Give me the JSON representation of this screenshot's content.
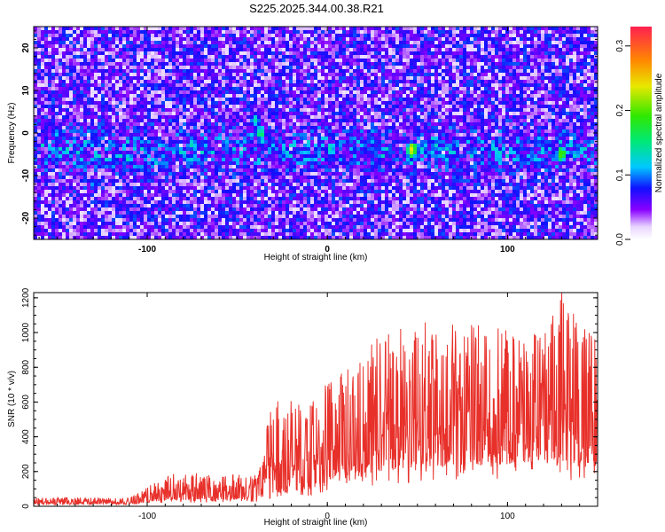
{
  "title": "S225.2025.344.00.38.R21",
  "chart_data": [
    {
      "type": "heatmap",
      "xlabel": "Height of straight line (km)",
      "ylabel": "Frequency (Hz)",
      "xlim": [
        -163,
        150
      ],
      "ylim": [
        -25,
        25
      ],
      "x_ticks": [
        {
          "v": -100,
          "label": "-100"
        },
        {
          "v": 0,
          "label": "0"
        },
        {
          "v": 100,
          "label": "100"
        }
      ],
      "y_ticks": [
        {
          "v": -20,
          "label": "-20"
        },
        {
          "v": -10,
          "label": "-10"
        },
        {
          "v": 0,
          "label": "0"
        },
        {
          "v": 10,
          "label": "10"
        },
        {
          "v": 20,
          "label": "20"
        }
      ],
      "colorbar": {
        "label": "Normalized spectral amplitude",
        "range": [
          0.0,
          0.33
        ],
        "ticks": [
          {
            "v": 0.0,
            "label": "0.0"
          },
          {
            "v": 0.1,
            "label": "0.1"
          },
          {
            "v": 0.2,
            "label": "0.2"
          },
          {
            "v": 0.3,
            "label": "0.3"
          }
        ]
      },
      "hot_spots": [
        {
          "x": 47,
          "y": -4,
          "value": 0.28
        },
        {
          "x": 130,
          "y": -5,
          "value": 0.24
        },
        {
          "x": -37,
          "y": 0,
          "value": 0.18
        },
        {
          "x": -40,
          "y": 3,
          "value": 0.15
        },
        {
          "x": 2,
          "y": -4,
          "value": 0.15
        },
        {
          "x": -110,
          "y": -6,
          "value": 0.14
        },
        {
          "x": -150,
          "y": 0,
          "value": 0.13
        },
        {
          "x": -75,
          "y": -2,
          "value": 0.12
        },
        {
          "x": 95,
          "y": -5,
          "value": 0.13
        },
        {
          "x": 60,
          "y": -3,
          "value": 0.12
        },
        {
          "x": -130,
          "y": -12,
          "value": 0.11
        },
        {
          "x": 25,
          "y": -4,
          "value": 0.11
        },
        {
          "x": -25,
          "y": -5,
          "value": 0.11
        },
        {
          "x": 115,
          "y": -6,
          "value": 0.12
        },
        {
          "x": -90,
          "y": -8,
          "value": 0.1
        },
        {
          "x": 80,
          "y": -4,
          "value": 0.1
        }
      ],
      "baseline_amplitude": 0.05
    },
    {
      "type": "line",
      "xlabel": "Height of straight line (km)",
      "ylabel": "SNR (10 * v/v)",
      "xlim": [
        -163,
        150
      ],
      "ylim": [
        0,
        1230
      ],
      "x_ticks": [
        {
          "v": -100,
          "label": "-100"
        },
        {
          "v": 0,
          "label": "0"
        },
        {
          "v": 100,
          "label": "100"
        }
      ],
      "y_ticks": [
        {
          "v": 0,
          "label": "0"
        },
        {
          "v": 200,
          "label": "200"
        },
        {
          "v": 400,
          "label": "400"
        },
        {
          "v": 600,
          "label": "600"
        },
        {
          "v": 800,
          "label": "800"
        },
        {
          "v": 1000,
          "label": "1000"
        },
        {
          "v": 1200,
          "label": "1200"
        }
      ],
      "series": [
        {
          "name": "SNR",
          "color": "#e8302a",
          "envelope": {
            "x": [
              -163,
              -110,
              -105,
              -90,
              -80,
              -60,
              -40,
              -35,
              -33,
              -20,
              -10,
              0,
              10,
              20,
              30,
              50,
              80,
              100,
              120,
              130,
              140,
              150
            ],
            "baseline": [
              20,
              20,
              25,
              60,
              60,
              60,
              70,
              80,
              110,
              140,
              170,
              220,
              260,
              300,
              330,
              380,
              400,
              400,
              410,
              410,
              410,
              420
            ],
            "peak": [
              50,
              50,
              80,
              180,
              200,
              180,
              190,
              280,
              580,
              640,
              580,
              750,
              780,
              900,
              1000,
              1060,
              1050,
              1020,
              1000,
              1230,
              1100,
              1000
            ]
          }
        }
      ]
    }
  ]
}
